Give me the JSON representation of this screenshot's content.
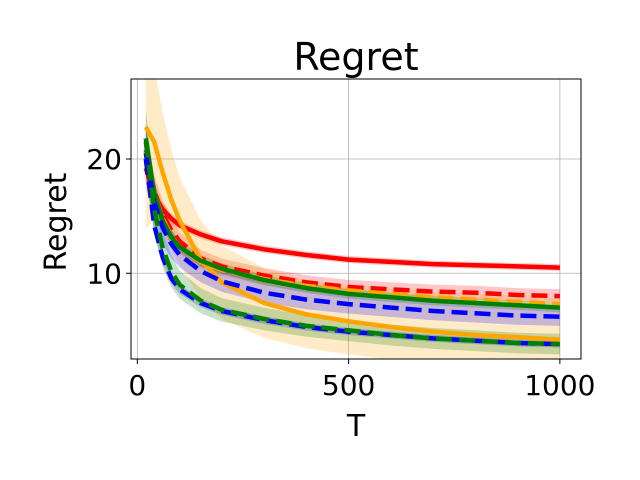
{
  "chart_data": {
    "type": "line",
    "title": "Regret",
    "xlabel": "T",
    "ylabel": "Regret",
    "xlim": [
      -15,
      1050
    ],
    "ylim": [
      2.5,
      27.0
    ],
    "xticks": [
      0,
      500,
      1000
    ],
    "yticks": [
      10,
      20
    ],
    "grid": true,
    "legend": "none",
    "x": [
      20,
      40,
      60,
      80,
      100,
      150,
      200,
      300,
      400,
      500,
      600,
      700,
      800,
      900,
      1000
    ],
    "series": [
      {
        "color": "#ff0000",
        "dash": false,
        "values": [
          19.2,
          16.8,
          15.6,
          14.8,
          14.2,
          13.4,
          12.8,
          12.1,
          11.6,
          11.2,
          11.0,
          10.8,
          10.7,
          10.6,
          10.5
        ],
        "band": 0.3
      },
      {
        "color": "#ff0000",
        "dash": true,
        "values": [
          20.8,
          17.2,
          15.2,
          13.8,
          12.8,
          11.3,
          10.6,
          9.8,
          9.2,
          8.8,
          8.6,
          8.4,
          8.3,
          8.1,
          8.0
        ],
        "band": 0.6
      },
      {
        "color": "#ffa500",
        "dash": false,
        "values": [
          22.8,
          21.5,
          18.8,
          16.5,
          14.6,
          11.2,
          9.2,
          7.4,
          6.4,
          5.8,
          5.3,
          4.9,
          4.6,
          4.4,
          4.2
        ],
        "band": 2.8
      },
      {
        "color": "#ffa500",
        "dash": true,
        "values": [
          20.6,
          17.0,
          14.8,
          13.3,
          12.3,
          11.0,
          10.3,
          9.5,
          8.9,
          8.5,
          8.2,
          7.9,
          7.7,
          7.5,
          7.3
        ],
        "band": 0.5
      },
      {
        "color": "#008000",
        "dash": false,
        "values": [
          21.8,
          17.0,
          14.6,
          13.2,
          12.3,
          11.1,
          10.4,
          9.4,
          8.7,
          8.2,
          7.9,
          7.6,
          7.4,
          7.2,
          7.0
        ],
        "band": 0.4
      },
      {
        "color": "#0000ff",
        "dash": true,
        "values": [
          20.5,
          16.2,
          14.0,
          12.6,
          11.6,
          10.2,
          9.3,
          8.3,
          7.7,
          7.3,
          7.0,
          6.7,
          6.5,
          6.3,
          6.2
        ],
        "band": 0.8
      },
      {
        "color": "#0000ff",
        "dash": true,
        "values": [
          20.0,
          14.2,
          11.4,
          9.6,
          8.6,
          7.4,
          6.7,
          5.9,
          5.3,
          4.9,
          4.6,
          4.3,
          4.1,
          3.9,
          3.8
        ],
        "band": 0.3
      },
      {
        "color": "#008000",
        "dash": true,
        "values": [
          21.5,
          15.6,
          12.2,
          10.2,
          9.0,
          7.6,
          6.8,
          6.0,
          5.4,
          5.0,
          4.6,
          4.3,
          4.1,
          3.9,
          3.8
        ],
        "band": 0.9
      }
    ]
  }
}
